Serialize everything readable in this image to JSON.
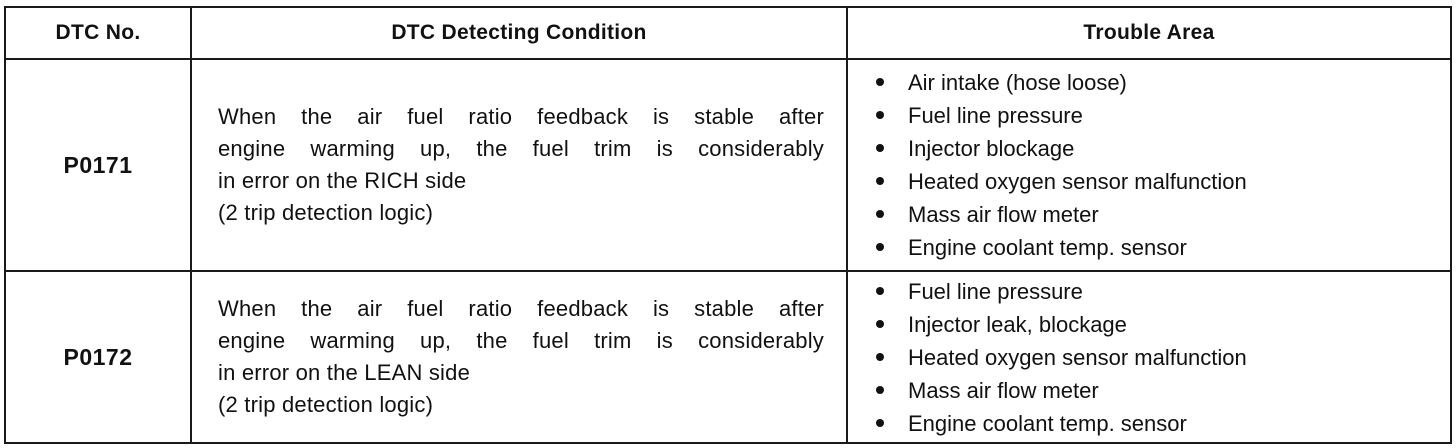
{
  "headers": {
    "dtc_no": "DTC No.",
    "condition": "DTC Detecting Condition",
    "trouble_area": "Trouble Area"
  },
  "rows": [
    {
      "dtc": "P0171",
      "condition_lines": [
        "When the air fuel ratio feedback is stable after",
        "engine warming up, the fuel trim is considerably",
        "in error on the RICH side",
        "(2 trip detection logic)"
      ],
      "trouble_areas": [
        "Air intake (hose loose)",
        "Fuel line pressure",
        "Injector blockage",
        "Heated oxygen sensor malfunction",
        "Mass air flow meter",
        "Engine coolant temp. sensor"
      ]
    },
    {
      "dtc": "P0172",
      "condition_lines": [
        "When the air fuel ratio feedback is stable after",
        "engine warming up, the fuel trim is considerably",
        "in error on the LEAN side",
        "(2 trip detection logic)"
      ],
      "trouble_areas": [
        "Fuel line pressure",
        "Injector leak, blockage",
        "Heated oxygen sensor malfunction",
        "Mass air flow meter",
        "Engine coolant temp. sensor"
      ]
    }
  ]
}
